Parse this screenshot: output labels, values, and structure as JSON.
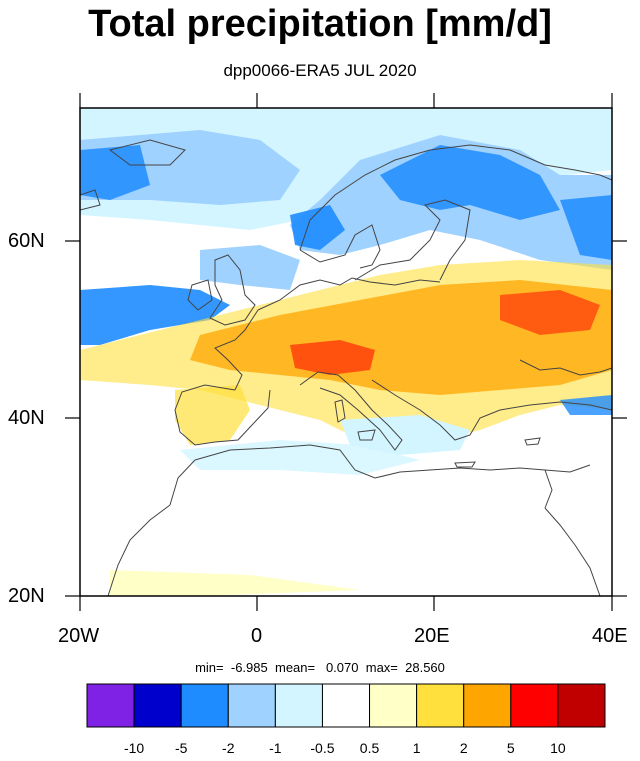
{
  "title": "Total precipitation [mm/d]",
  "subtitle": "dpp0066-ERA5 JUL 2020",
  "stats": {
    "min_label": "min=",
    "min": "-6.985",
    "mean_label": "mean=",
    "mean": "0.070",
    "max_label": "max=",
    "max": "28.560"
  },
  "axes": {
    "lon_labels": [
      "20W",
      "0",
      "20E",
      "40E"
    ],
    "lat_labels": [
      "20N",
      "40N",
      "60N"
    ],
    "lon_range": [
      -20,
      40
    ],
    "lat_range": [
      20,
      75
    ]
  },
  "colorbar": {
    "colors": [
      "#7f22e6",
      "#0000cc",
      "#1e8cff",
      "#a0d2ff",
      "#d2f5ff",
      "#ffffff",
      "#ffffc8",
      "#ffe03c",
      "#ffa500",
      "#ff0000",
      "#c00000"
    ],
    "labels": [
      "-10",
      "-5",
      "-2",
      "-1",
      "-0.5",
      "0.5",
      "1",
      "2",
      "5",
      "10"
    ]
  }
}
